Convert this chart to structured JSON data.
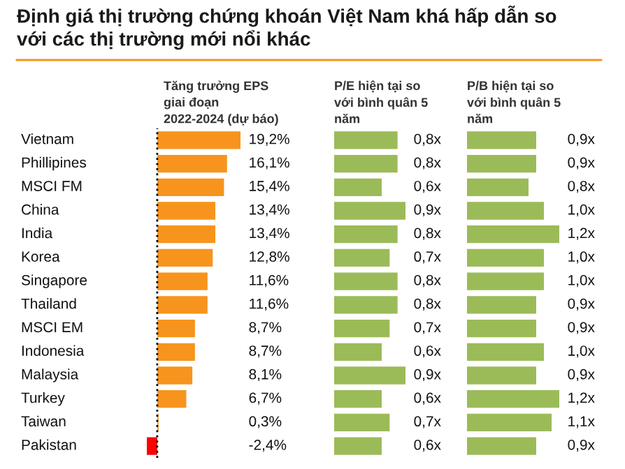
{
  "chart_data": [
    {
      "type": "bar",
      "orientation": "horizontal",
      "title": "Định giá thị trường chứng khoán Việt Nam khá hấp dẫn so với các thị trường mới nổi khác",
      "subtitle": "Tăng trưởng EPS giai đoạn 2022-2024 (dự báo)",
      "categories": [
        "Vietnam",
        "Phillipines",
        "MSCI FM",
        "China",
        "India",
        "Korea",
        "Singapore",
        "Thailand",
        "MSCI EM",
        "Indonesia",
        "Malaysia",
        "Turkey",
        "Taiwan",
        "Pakistan"
      ],
      "values": [
        19.2,
        16.1,
        15.4,
        13.4,
        13.4,
        12.8,
        11.6,
        11.6,
        8.7,
        8.7,
        8.1,
        6.7,
        0.3,
        -2.4
      ],
      "colors": [
        "#f7941d",
        "#f7941d",
        "#f7941d",
        "#f7941d",
        "#f7941d",
        "#f7941d",
        "#f7941d",
        "#f7941d",
        "#f7941d",
        "#f7941d",
        "#f7941d",
        "#f7941d",
        "#f7941d",
        "#ff0000"
      ],
      "value_labels": [
        "19,2%",
        "16,1%",
        "15,4%",
        "13,4%",
        "13,4%",
        "12,8%",
        "11,6%",
        "11,6%",
        "8,7%",
        "8,7%",
        "8,1%",
        "6,7%",
        "0,3%",
        "-2,4%"
      ],
      "ref_lines": [
        {
          "axis": "x",
          "value": 0,
          "color": "#000000",
          "line_style": "dotted"
        }
      ]
    },
    {
      "type": "bar",
      "orientation": "horizontal",
      "subtitle": "P/E hiện tại so với bình quân 5 năm",
      "color": "#9bbb59",
      "values": [
        0.8,
        0.8,
        0.6,
        0.9,
        0.8,
        0.7,
        0.8,
        0.8,
        0.7,
        0.6,
        0.9,
        0.6,
        0.7,
        0.6
      ],
      "value_labels": [
        "0,8x",
        "0,8x",
        "0,6x",
        "0,9x",
        "0,8x",
        "0,7x",
        "0,8x",
        "0,8x",
        "0,7x",
        "0,6x",
        "0,9x",
        "0,6x",
        "0,7x",
        "0,6x"
      ]
    },
    {
      "type": "bar",
      "orientation": "horizontal",
      "subtitle": "P/B hiện tại so với bình quân 5 năm",
      "color": "#9bbb59",
      "values": [
        0.9,
        0.9,
        0.8,
        1.0,
        1.2,
        1.0,
        1.0,
        0.9,
        0.9,
        1.0,
        0.9,
        1.2,
        1.1,
        0.9
      ],
      "value_labels": [
        "0,9x",
        "0,9x",
        "0,8x",
        "1,0x",
        "1,2x",
        "1,0x",
        "1,0x",
        "0,9x",
        "0,9x",
        "1,0x",
        "0,9x",
        "1,2x",
        "1,1x",
        "0,9x"
      ]
    }
  ]
}
